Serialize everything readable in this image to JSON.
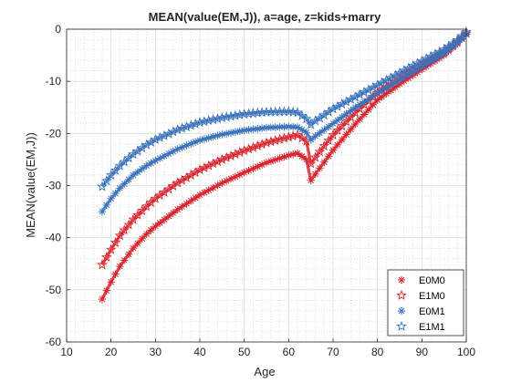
{
  "chart_data": {
    "type": "line",
    "title": "MEAN(value(EM,J)), a=age, z=kids+marry",
    "xlabel": "Age",
    "ylabel": "MEAN(value(EM,J))",
    "xlim": [
      10,
      100
    ],
    "ylim": [
      -60,
      0
    ],
    "xticks": [
      10,
      20,
      30,
      40,
      50,
      60,
      70,
      80,
      90,
      100
    ],
    "yticks": [
      -60,
      -50,
      -40,
      -30,
      -20,
      -10,
      0
    ],
    "grid": "on (major and minor)",
    "legend_position": "bottom-right",
    "series": [
      {
        "name": "E0M0",
        "marker": "asterisk",
        "color": "#d9232d",
        "x": [
          18,
          20,
          22,
          25,
          28,
          30,
          35,
          40,
          45,
          50,
          55,
          60,
          62,
          64,
          65,
          66,
          68,
          70,
          75,
          80,
          85,
          90,
          95,
          98,
          100
        ],
        "y": [
          -51.8,
          -48.5,
          -45.5,
          -42,
          -39.3,
          -37.8,
          -34.6,
          -31.8,
          -29.5,
          -27.5,
          -25.6,
          -24.2,
          -23.8,
          -25,
          -29,
          -27.8,
          -25.5,
          -23.2,
          -18.2,
          -13.6,
          -10.5,
          -7.7,
          -5,
          -2.8,
          -1
        ]
      },
      {
        "name": "E1M0",
        "marker": "pentagram",
        "color": "#d9232d",
        "x": [
          18,
          20,
          22,
          25,
          28,
          30,
          35,
          40,
          45,
          50,
          55,
          60,
          62,
          64,
          65,
          66,
          68,
          70,
          75,
          80,
          85,
          90,
          95,
          98,
          100
        ],
        "y": [
          -45.2,
          -42.3,
          -39.6,
          -36.5,
          -34,
          -32.5,
          -29.5,
          -27,
          -25,
          -23.3,
          -21.8,
          -20.7,
          -20.3,
          -21.5,
          -25.8,
          -24.6,
          -22.4,
          -20.3,
          -16,
          -12.2,
          -9.5,
          -6.9,
          -4.4,
          -2.4,
          -0.8
        ]
      },
      {
        "name": "E0M1",
        "marker": "asterisk",
        "color": "#3a72bc",
        "x": [
          18,
          20,
          22,
          25,
          28,
          30,
          35,
          40,
          45,
          50,
          55,
          60,
          62,
          64,
          65,
          66,
          68,
          70,
          75,
          80,
          85,
          90,
          95,
          98,
          100
        ],
        "y": [
          -35,
          -32.5,
          -30.5,
          -28,
          -26.2,
          -25.2,
          -23,
          -21.3,
          -20.2,
          -19.4,
          -18.9,
          -18.7,
          -18.8,
          -19.8,
          -21.2,
          -20.5,
          -19.3,
          -18.1,
          -15,
          -12.3,
          -9.7,
          -7.2,
          -4.7,
          -2.6,
          -1
        ]
      },
      {
        "name": "E1M1",
        "marker": "pentagram",
        "color": "#3a72bc",
        "x": [
          18,
          20,
          22,
          25,
          28,
          30,
          35,
          40,
          45,
          50,
          55,
          60,
          62,
          64,
          65,
          66,
          68,
          70,
          75,
          80,
          85,
          90,
          95,
          98,
          100
        ],
        "y": [
          -30.2,
          -28,
          -26.2,
          -24,
          -22.2,
          -21.2,
          -19.3,
          -17.9,
          -17,
          -16.3,
          -15.9,
          -15.8,
          -16,
          -17.2,
          -18.3,
          -17.6,
          -16.5,
          -15.3,
          -13,
          -10.7,
          -8.4,
          -6.1,
          -3.9,
          -2.1,
          -0.5
        ]
      }
    ]
  }
}
